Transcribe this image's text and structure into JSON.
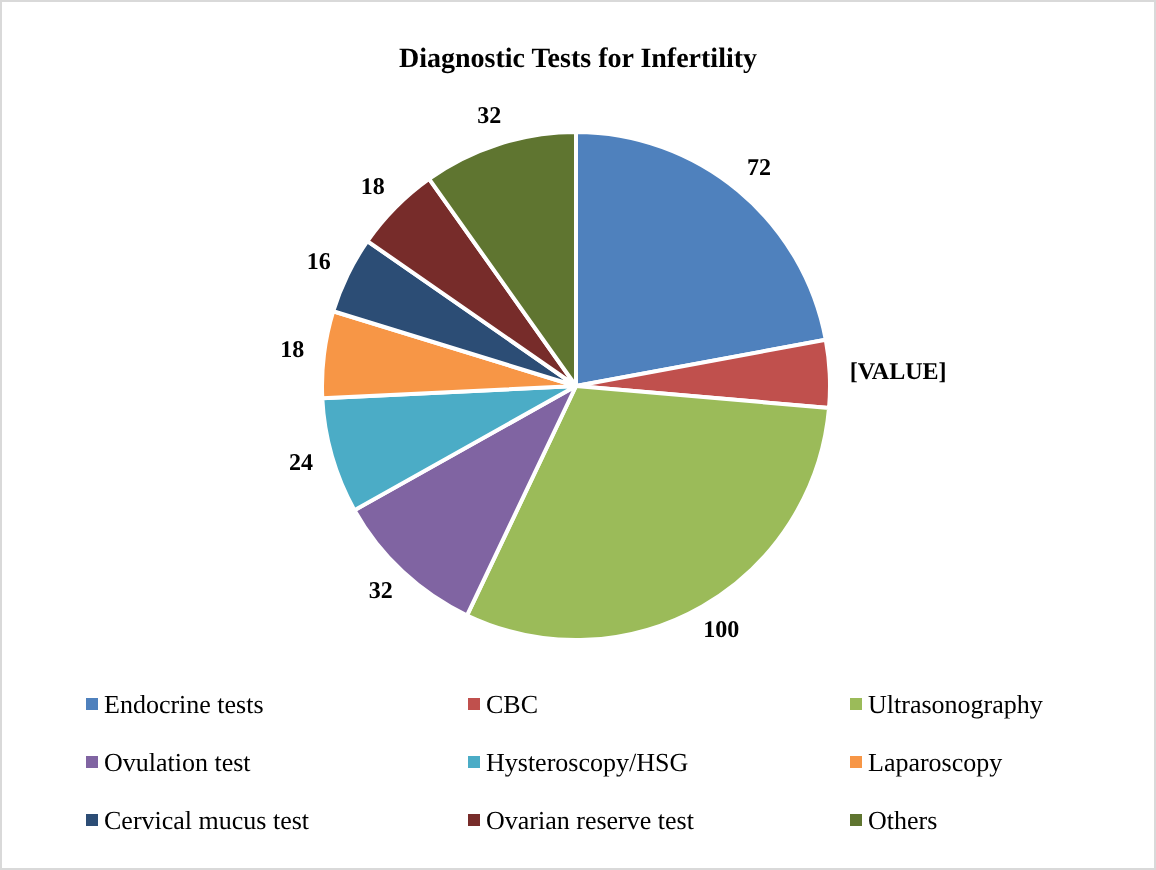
{
  "chart_data": {
    "type": "pie",
    "title": "Diagnostic Tests for Infertility",
    "categories": [
      "Endocrine tests",
      "CBC",
      "Ultrasonography",
      "Ovulation test",
      "Hysteroscopy/HSG",
      "Laparoscopy",
      "Cervical mucus test",
      "Ovarian reserve test",
      "Others"
    ],
    "values": [
      72,
      14,
      100,
      32,
      24,
      18,
      16,
      18,
      32
    ],
    "colors": [
      "#4f81bd",
      "#c0504d",
      "#9bbb59",
      "#8064a2",
      "#4bacc6",
      "#f79646",
      "#2c4d75",
      "#772c2a",
      "#5f7530"
    ],
    "value_labels": [
      "72",
      "[VALUE]",
      "100",
      "32",
      "24",
      "18",
      "16",
      "18",
      "32"
    ],
    "legend": "bottom"
  }
}
